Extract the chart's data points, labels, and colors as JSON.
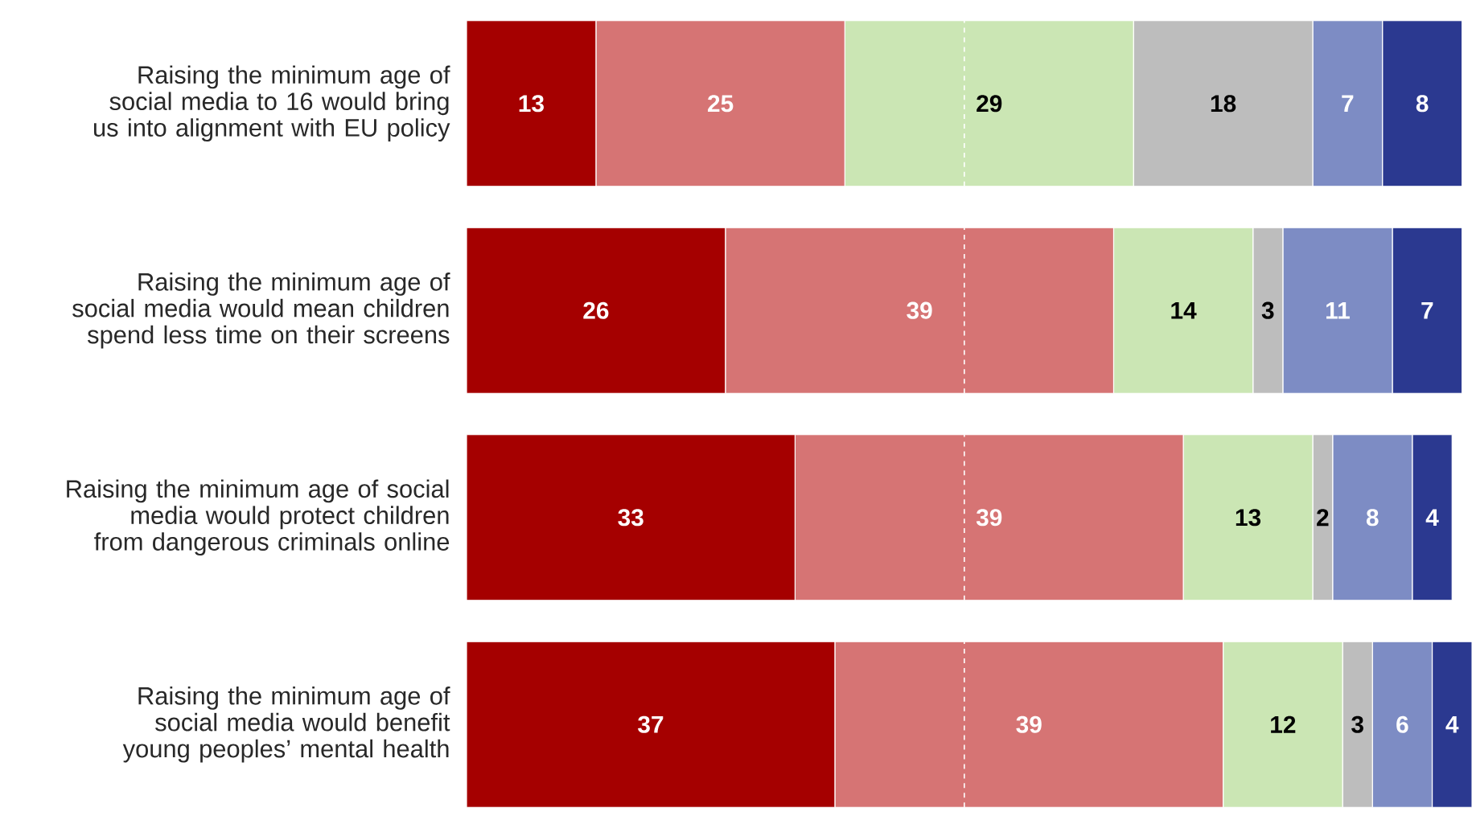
{
  "chart_data": {
    "type": "bar",
    "orientation": "horizontal",
    "stacked": true,
    "data_labels": true,
    "categories": [
      "Raising the minimum age of social media to 16 would bring us into alignment with EU policy",
      "Raising the minimum age of social media would mean children spend less time on their screens",
      "Raising the minimum age of social media would protect children from dangerous criminals online",
      "Raising the minimum age of social media would benefit young peoples’ mental health"
    ],
    "series": [
      {
        "color": "#a50000",
        "values": [
          13,
          26,
          33,
          37
        ]
      },
      {
        "color": "#d67474",
        "values": [
          25,
          39,
          39,
          39
        ]
      },
      {
        "color": "#cbe6b4",
        "values": [
          29,
          14,
          13,
          12
        ]
      },
      {
        "color": "#bdbdbd",
        "values": [
          18,
          3,
          2,
          3
        ]
      },
      {
        "color": "#7d8cc4",
        "values": [
          7,
          11,
          8,
          6
        ]
      },
      {
        "color": "#2b3990",
        "values": [
          8,
          7,
          4,
          4
        ]
      }
    ],
    "ref_lines": [
      {
        "axis": "x",
        "value": 50,
        "color": "#ffffff",
        "line_style": "dashed"
      }
    ]
  }
}
